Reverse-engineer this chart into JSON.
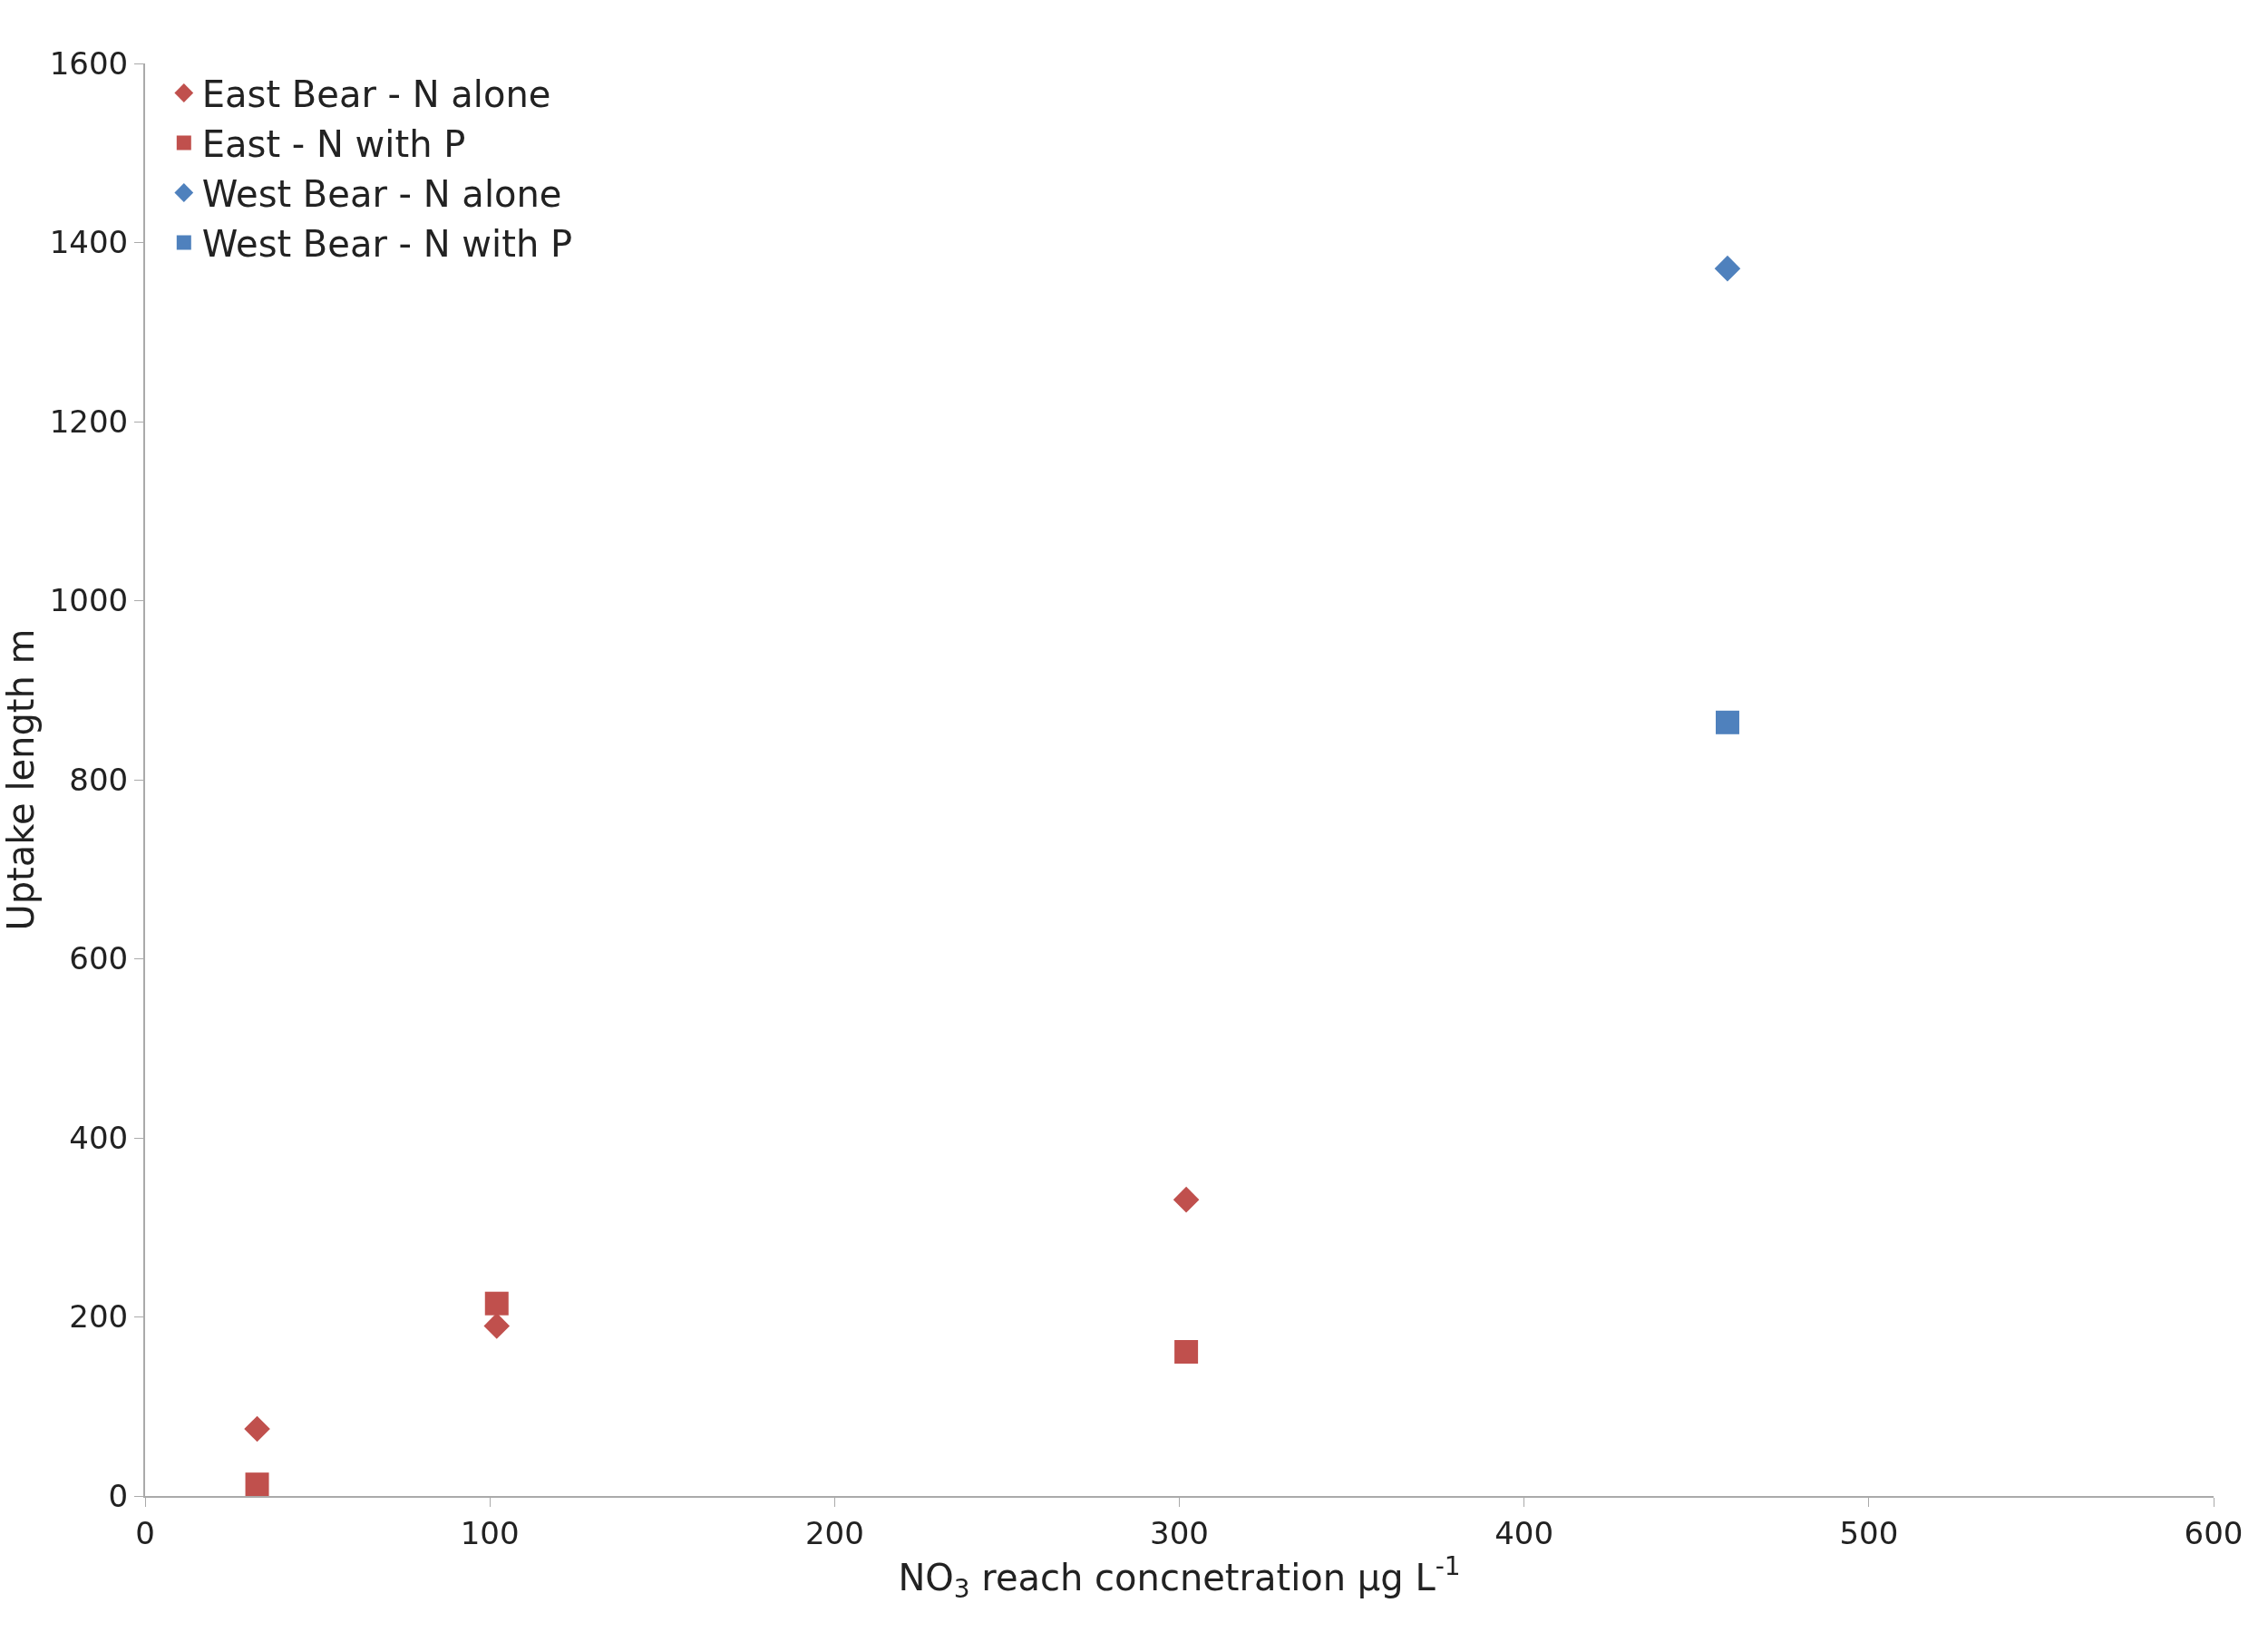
{
  "chart_data": {
    "type": "scatter",
    "xlabel": "NO$_{3}$ reach concnetration µg L$^{-1}$",
    "ylabel": "Uptake length m",
    "xlim": [
      0,
      600
    ],
    "xticks": [
      0,
      100,
      200,
      300,
      400,
      500,
      600
    ],
    "ylim": [
      0,
      1600
    ],
    "yticks": [
      0,
      200,
      400,
      600,
      800,
      1000,
      1200,
      1400,
      1600
    ],
    "legend": "top left",
    "series": [
      {
        "name": "East Bear - N alone",
        "color": "#c0504d",
        "marker": "diamond",
        "x": [
          32.5,
          102,
          302
        ],
        "values": [
          75,
          190,
          331
        ]
      },
      {
        "name": "East - N with P",
        "color": "#c0504d",
        "marker": "square",
        "x": [
          32.5,
          102,
          302
        ],
        "values": [
          13,
          215,
          161
        ]
      },
      {
        "name": "West Bear - N alone",
        "color": "#4f81bd",
        "marker": "diamond",
        "x": [
          459
        ],
        "values": [
          1371
        ]
      },
      {
        "name": "West Bear - N with P",
        "color": "#4f81bd",
        "marker": "square",
        "x": [
          459
        ],
        "values": [
          864
        ]
      }
    ]
  }
}
